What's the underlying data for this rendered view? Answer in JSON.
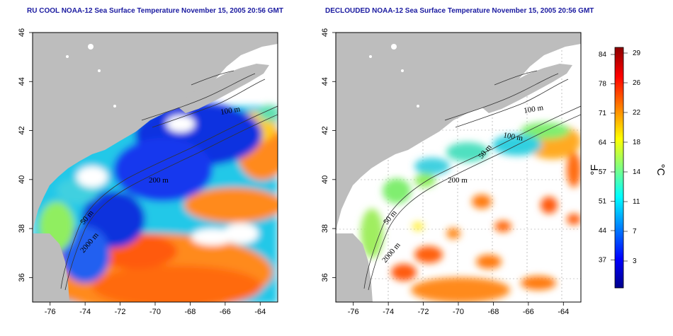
{
  "panels": [
    {
      "id": "left",
      "title": "RU COOL NOAA-12 Sea Surface Temperature November 15, 2005 20:56 GMT",
      "contour_labels": [
        "100 m",
        "200 m",
        "50 m",
        "2000 m"
      ]
    },
    {
      "id": "right",
      "title": "DECLOUDED NOAA-12 Sea Surface Temperature November 15, 2005 20:56 GMT",
      "contour_labels": [
        "100 m",
        "100 m",
        "50 m",
        "200 m",
        "50 m",
        "2000 m"
      ]
    }
  ],
  "axes": {
    "x_ticks": [
      "-76",
      "-74",
      "-72",
      "-70",
      "-68",
      "-66",
      "-64"
    ],
    "y_ticks": [
      "36",
      "38",
      "40",
      "42",
      "44",
      "46"
    ]
  },
  "colorbar": {
    "fahrenheit_label": "°F",
    "celsius_label": "°C",
    "fahrenheit_ticks": [
      "84",
      "78",
      "71",
      "64",
      "57",
      "51",
      "44",
      "37"
    ],
    "celsius_ticks": [
      "29",
      "26",
      "22",
      "18",
      "14",
      "11",
      "7",
      "3"
    ],
    "colors": [
      "#00008b",
      "#0000ff",
      "#0080ff",
      "#00ffff",
      "#80ff80",
      "#ffff00",
      "#ff8000",
      "#ff0000",
      "#8b0000"
    ]
  },
  "colors": {
    "land": "#bdbdbd",
    "title": "#1a1aa0"
  }
}
